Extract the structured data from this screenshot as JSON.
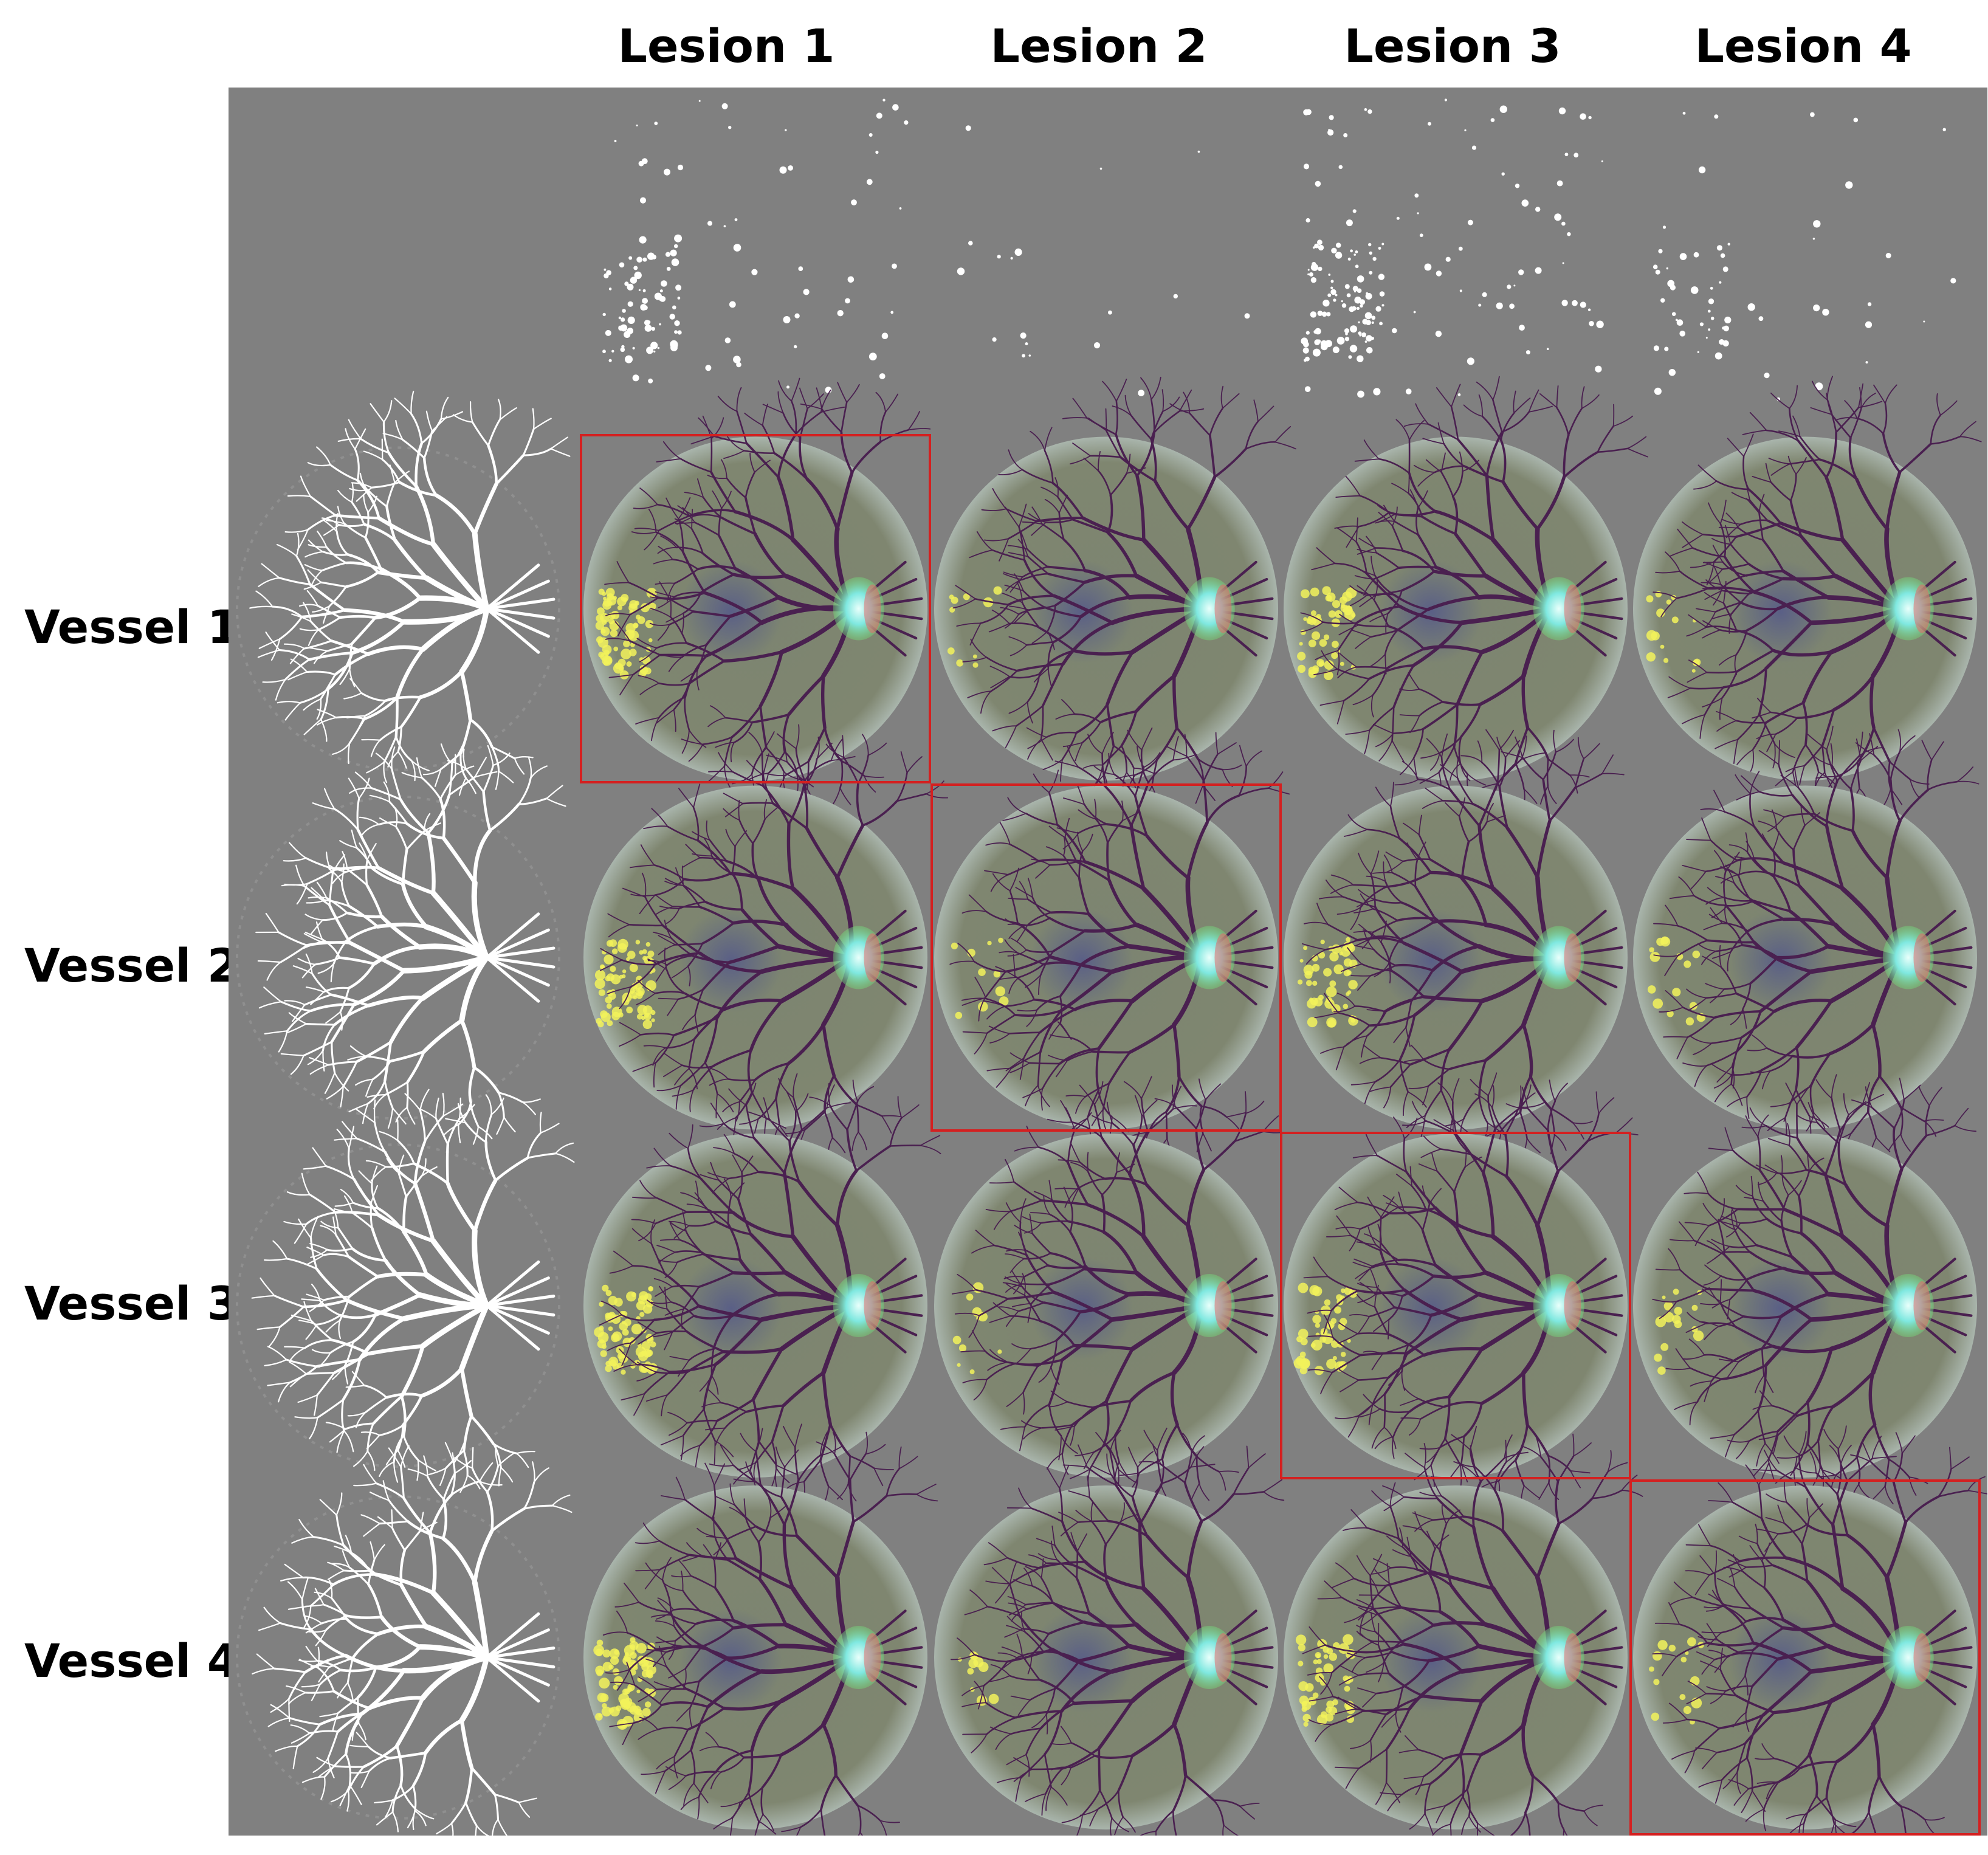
{
  "columns": [
    "Lesion 1",
    "Lesion 2",
    "Lesion 3",
    "Lesion 4"
  ],
  "rows": [
    "Vessel 1",
    "Vessel 2",
    "Vessel 3",
    "Vessel 4"
  ],
  "colors": {
    "panel_background": "#808080",
    "highlight_border": "#d42020",
    "vessel_white": "#ffffff",
    "lesion_yellow": "#f2f25a",
    "optic_disc_cyan": "#7fe8e0",
    "optic_disc_green": "#74e07a",
    "fundus_base": "#7f8670",
    "vessel_dark": "#4a2050"
  },
  "highlighted_cells": [
    [
      1,
      1
    ],
    [
      2,
      2
    ],
    [
      3,
      3
    ],
    [
      4,
      4
    ]
  ]
}
